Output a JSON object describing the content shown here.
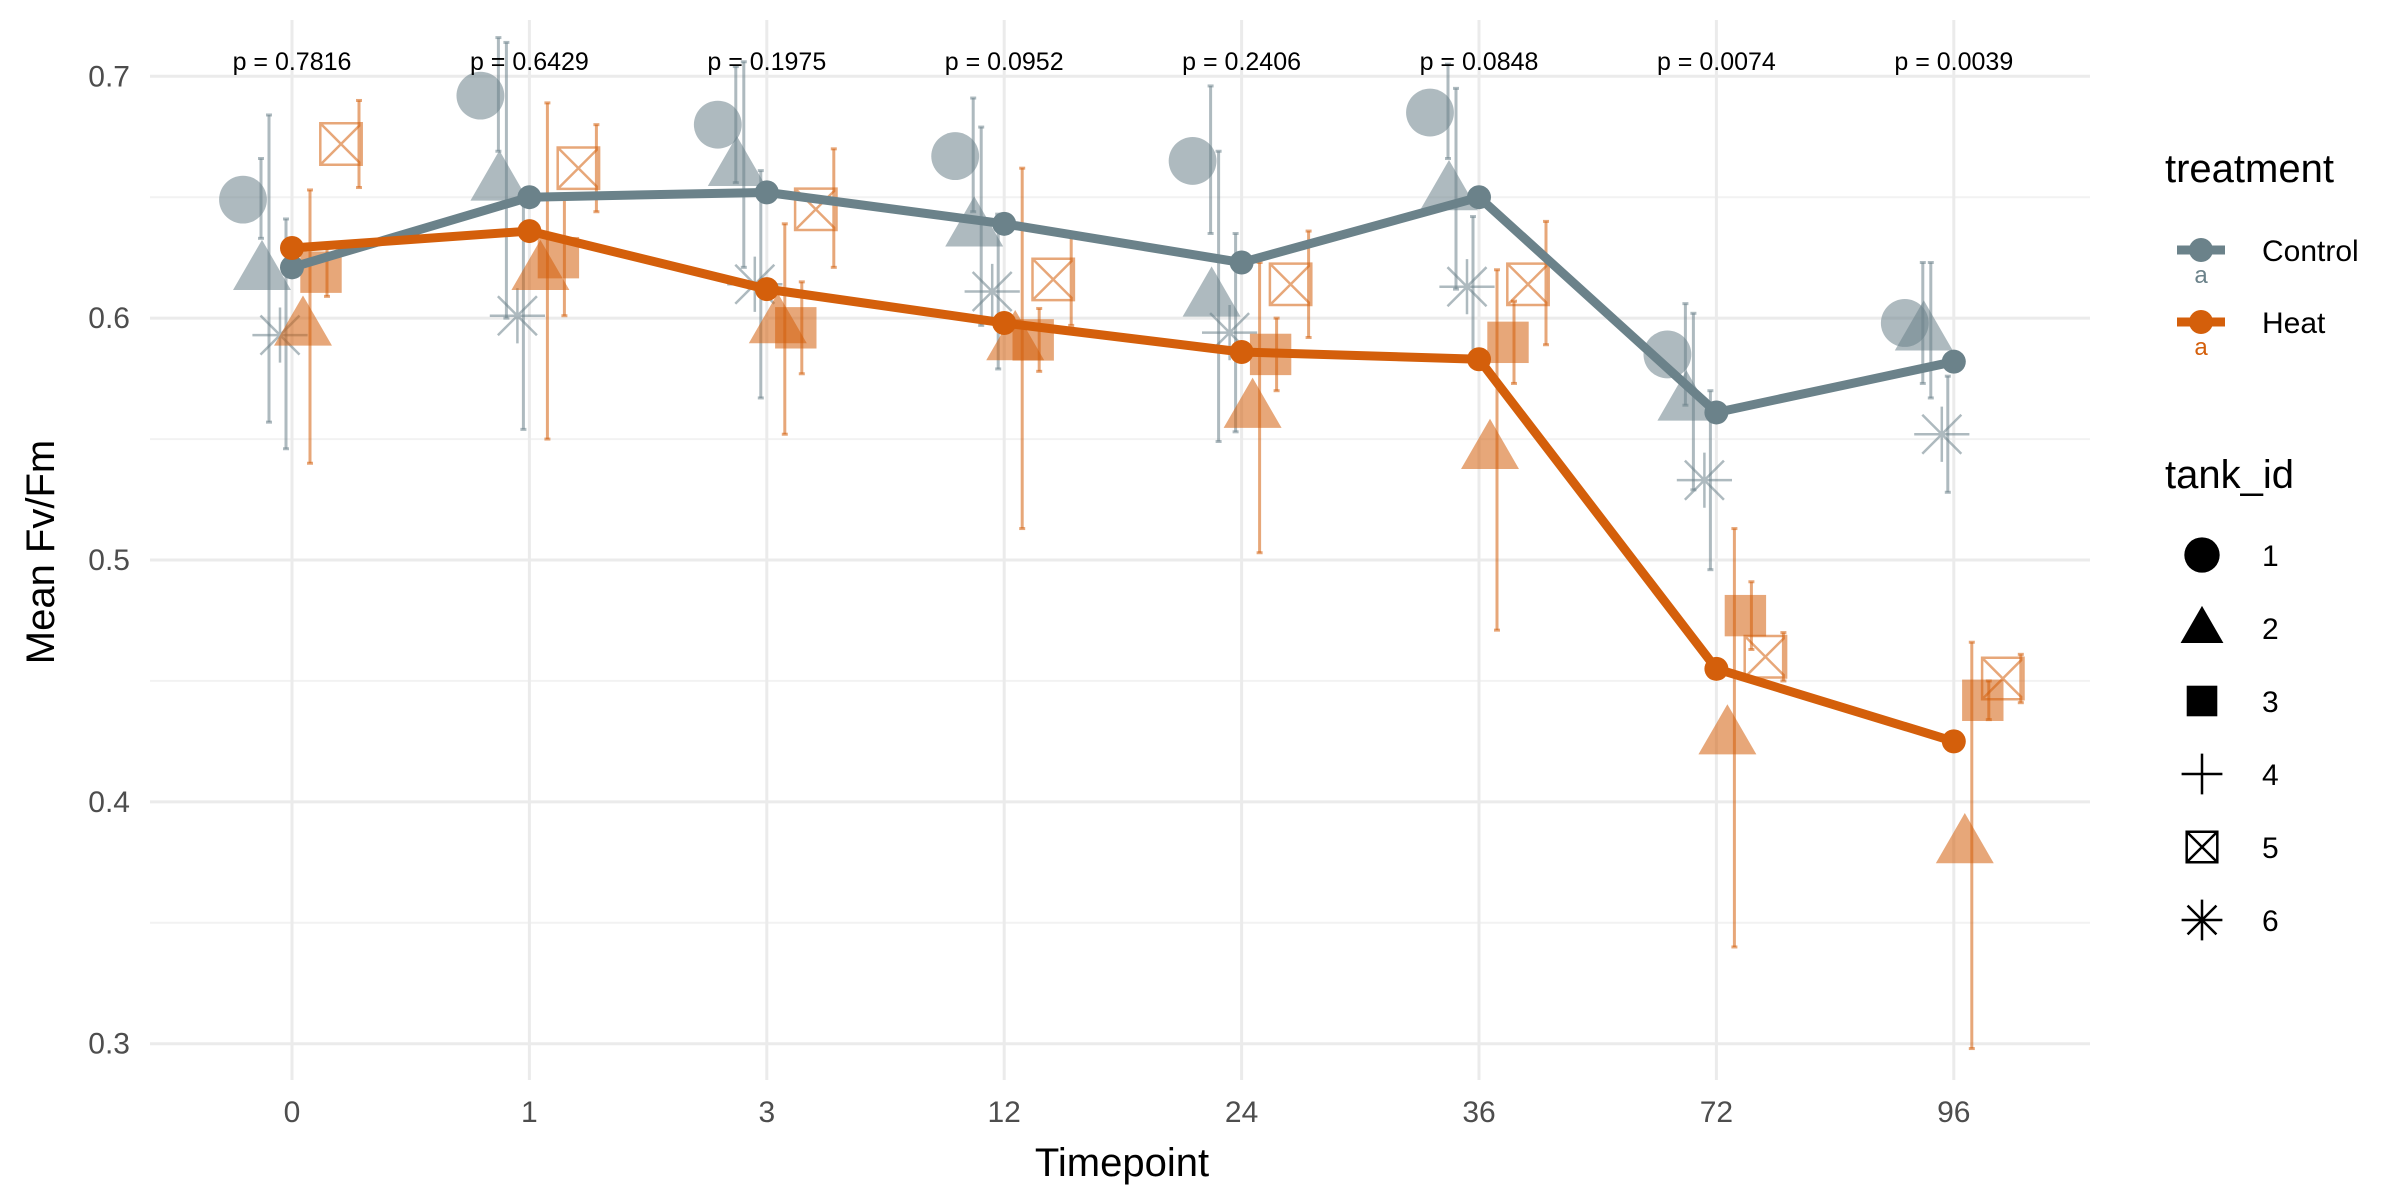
{
  "chart_data": {
    "type": "line",
    "xlabel": "Timepoint",
    "ylabel": "Mean Fv/Fm",
    "categories": [
      "0",
      "1",
      "3",
      "12",
      "24",
      "36",
      "72",
      "96"
    ],
    "ylim": [
      0.285,
      0.715
    ],
    "yticks": [
      0.3,
      0.4,
      0.5,
      0.6,
      0.7
    ],
    "yticks_minor": [
      0.35,
      0.45,
      0.55,
      0.65
    ],
    "grid": true,
    "p_values": [
      "p = 0.7816",
      "p = 0.6429",
      "p = 0.1975",
      "p = 0.0952",
      "p = 0.2406",
      "p = 0.0848",
      "p = 0.0074",
      "p = 0.0039"
    ],
    "series": [
      {
        "name": "Control",
        "color": "#6b828a",
        "values": [
          0.621,
          0.65,
          0.652,
          0.639,
          0.623,
          0.65,
          0.561,
          0.582
        ]
      },
      {
        "name": "Heat",
        "color": "#d45f0b",
        "values": [
          0.629,
          0.636,
          0.612,
          0.598,
          0.586,
          0.583,
          0.455,
          0.425
        ]
      }
    ],
    "tank_points": [
      {
        "treatment": "Control",
        "tank": 1,
        "values": [
          0.649,
          0.692,
          0.68,
          0.667,
          0.665,
          0.685,
          0.585,
          0.598
        ],
        "lo": [
          0.633,
          0.669,
          0.656,
          0.644,
          0.635,
          0.666,
          0.564,
          0.573
        ],
        "hi": [
          0.666,
          0.716,
          0.704,
          0.691,
          0.696,
          0.705,
          0.606,
          0.623
        ]
      },
      {
        "treatment": "Control",
        "tank": 2,
        "values": [
          0.62,
          0.657,
          0.663,
          0.638,
          0.609,
          0.653,
          0.566,
          0.595
        ],
        "lo": [
          0.557,
          0.6,
          0.621,
          0.597,
          0.549,
          0.612,
          0.529,
          0.567
        ],
        "hi": [
          0.684,
          0.714,
          0.706,
          0.679,
          0.669,
          0.695,
          0.602,
          0.623
        ]
      },
      {
        "treatment": "Control",
        "tank": 6,
        "values": [
          0.593,
          0.601,
          0.614,
          0.611,
          0.594,
          0.613,
          0.533,
          0.552
        ],
        "lo": [
          0.546,
          0.554,
          0.567,
          0.579,
          0.553,
          0.584,
          0.496,
          0.528
        ],
        "hi": [
          0.641,
          0.648,
          0.661,
          0.643,
          0.635,
          0.642,
          0.57,
          0.576
        ]
      },
      {
        "treatment": "Heat",
        "tank": 2,
        "values": [
          0.597,
          0.62,
          0.598,
          0.591,
          0.563,
          0.546,
          0.428,
          0.383
        ],
        "lo": [
          0.54,
          0.55,
          0.552,
          0.513,
          0.503,
          0.471,
          0.34,
          0.298
        ],
        "hi": [
          0.653,
          0.689,
          0.639,
          0.662,
          0.623,
          0.62,
          0.513,
          0.466
        ]
      },
      {
        "treatment": "Heat",
        "tank": 3,
        "values": [
          0.619,
          0.625,
          0.596,
          0.591,
          0.585,
          0.59,
          0.477,
          0.442
        ],
        "lo": [
          0.609,
          0.601,
          0.577,
          0.578,
          0.57,
          0.573,
          0.463,
          0.434
        ],
        "hi": [
          0.629,
          0.65,
          0.615,
          0.604,
          0.6,
          0.607,
          0.491,
          0.45
        ]
      },
      {
        "treatment": "Heat",
        "tank": 5,
        "values": [
          0.672,
          0.662,
          0.645,
          0.616,
          0.614,
          0.614,
          0.46,
          0.451
        ],
        "lo": [
          0.654,
          0.644,
          0.621,
          0.597,
          0.592,
          0.589,
          0.45,
          0.441
        ],
        "hi": [
          0.69,
          0.68,
          0.67,
          0.635,
          0.636,
          0.64,
          0.47,
          0.461
        ]
      }
    ],
    "legends": [
      {
        "title": "treatment",
        "placement": "right",
        "items": [
          {
            "label": "Control",
            "letter": "a",
            "color": "#6b828a"
          },
          {
            "label": "Heat",
            "letter": "a",
            "color": "#d45f0b"
          }
        ]
      },
      {
        "title": "tank_id",
        "placement": "right",
        "items": [
          {
            "label": "1",
            "shape": "circle"
          },
          {
            "label": "2",
            "shape": "triangle"
          },
          {
            "label": "3",
            "shape": "square"
          },
          {
            "label": "4",
            "shape": "plus"
          },
          {
            "label": "5",
            "shape": "square-cross"
          },
          {
            "label": "6",
            "shape": "asterisk"
          }
        ]
      }
    ]
  }
}
